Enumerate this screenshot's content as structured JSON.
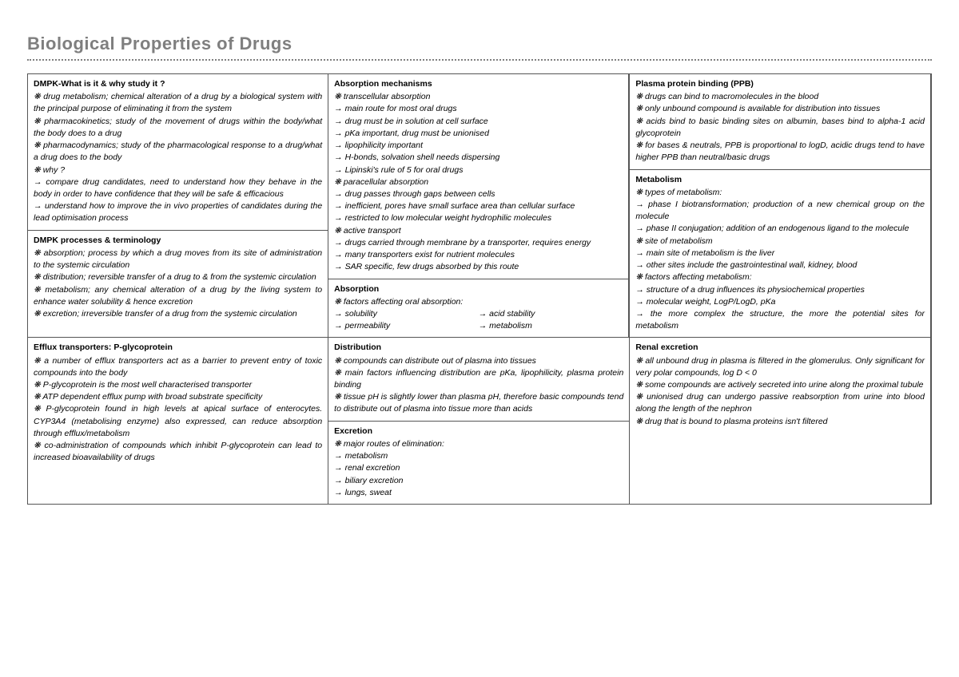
{
  "title": "Biological Properties of Drugs",
  "bullet": "❋",
  "arrow": "→",
  "colors": {
    "title": "#7f7f7f",
    "border": "#555555",
    "text": "#000000",
    "bg": "#ffffff"
  },
  "cells": {
    "dmpk_what": {
      "title": "DMPK-What is it & why study it ?",
      "lines": [
        "❋ drug metabolism; chemical alteration of a drug by a biological system with the principal purpose of eliminating it from the system",
        "❋ pharmacokinetics; study of the movement of drugs within the body/what the body does to a drug",
        "❋ pharmacodynamics; study of the pharmacological response to a drug/what a drug does to the body",
        "❋ why ?",
        "→ compare drug candidates, need to understand how they behave in the body in order to have confidence that they will be safe & efficacious",
        "→ understand how to improve the in vivo properties of candidates during the lead optimisation process"
      ]
    },
    "dmpk_proc": {
      "title": "DMPK processes & terminology",
      "lines": [
        "❋ absorption; process by which a drug moves from its site of administration to the systemic circulation",
        "❋ distribution; reversible transfer of a drug to & from the systemic circulation",
        "❋ metabolism; any chemical alteration of a drug by the living system to enhance water solubility & hence excretion",
        "❋ excretion; irreversible transfer of a drug from the systemic circulation"
      ]
    },
    "abs_mech": {
      "title": "Absorption mechanisms",
      "lines": [
        "❋ transcellular absorption",
        "→ main route for most oral drugs",
        "→ drug must be in solution at cell surface",
        "→ pKa important, drug must be unionised",
        "→ lipophilicity important",
        "→ H-bonds, solvation shell needs dispersing",
        "→ Lipinski's rule of 5 for oral drugs",
        "❋ paracellular absorption",
        "→ drug passes through gaps between cells",
        "→ inefficient, pores have small surface area than cellular surface",
        "→ restricted to low molecular weight hydrophilic molecules",
        "❋ active transport",
        "→ drugs carried through membrane by a transporter, requires energy",
        "→ many transporters exist for nutrient molecules",
        "→ SAR specific, few drugs absorbed by this route"
      ]
    },
    "absorption": {
      "title": "Absorption",
      "lead": "❋ factors affecting oral absorption:",
      "left": [
        "→ solubility",
        "→ permeability"
      ],
      "right": [
        "→ acid stability",
        "→ metabolism"
      ]
    },
    "efflux": {
      "title": "Efflux transporters: P-glycoprotein",
      "lines": [
        "❋ a number of efflux transporters act as a barrier to prevent entry of toxic compounds into the body",
        "❋ P-glycoprotein is the most well characterised transporter",
        "❋ ATP dependent efflux pump with broad substrate specificity",
        "❋ P-glycoprotein found in high levels at apical surface of enterocytes. CYP3A4 (metabolising enzyme) also expressed, can reduce absorption through efflux/metabolism",
        "❋ co-administration of compounds which inhibit P-glycoprotein can lead to increased bioavailability of drugs"
      ]
    },
    "distribution": {
      "title": "Distribution",
      "lines": [
        "❋ compounds can distribute out of plasma into tissues",
        "❋ main factors influencing distribution are pKa, lipophilicity, plasma protein binding",
        "❋ tissue pH is slightly lower than plasma pH, therefore basic compounds tend to distribute out of plasma into tissue more than acids"
      ]
    },
    "excretion": {
      "title": "Excretion",
      "lines": [
        "❋ major routes of elimination:",
        "→ metabolism",
        "→ renal excretion",
        "→ biliary excretion",
        "→ lungs, sweat"
      ]
    },
    "ppb": {
      "title": "Plasma protein binding (PPB)",
      "lines": [
        "❋ drugs can bind to macromolecules in the blood",
        "❋ only unbound compound is available for distribution into tissues",
        "❋ acids bind to basic binding sites on albumin, bases bind to alpha-1 acid glycoprotein",
        "❋ for bases & neutrals, PPB is proportional to logD, acidic drugs tend to have higher PPB than neutral/basic drugs"
      ]
    },
    "metabolism": {
      "title": "Metabolism",
      "lines": [
        "❋ types of metabolism:",
        "→ phase I biotransformation; production of a new chemical group on the molecule",
        "→ phase II conjugation; addition of an endogenous ligand to the molecule",
        "❋ site of metabolism",
        "→ main site of metabolism is the liver",
        "→ other sites include the gastrointestinal wall, kidney, blood",
        "❋ factors affecting metabolism:",
        "→ structure of a drug influences its physiochemical properties",
        "→ molecular weight, LogP/LogD, pKa",
        "→ the more complex the structure, the more the potential sites for metabolism"
      ]
    },
    "renal": {
      "title": "Renal excretion",
      "lines": [
        "❋ all unbound drug in plasma is filtered in the glomerulus. Only significant for very polar compounds, log D < 0",
        "❋ some compounds are actively secreted into urine along the proximal tubule",
        "❋ unionised drug can undergo passive reabsorption from urine into blood along the length of the nephron",
        "❋ drug that is bound to plasma proteins isn't filtered"
      ]
    }
  }
}
